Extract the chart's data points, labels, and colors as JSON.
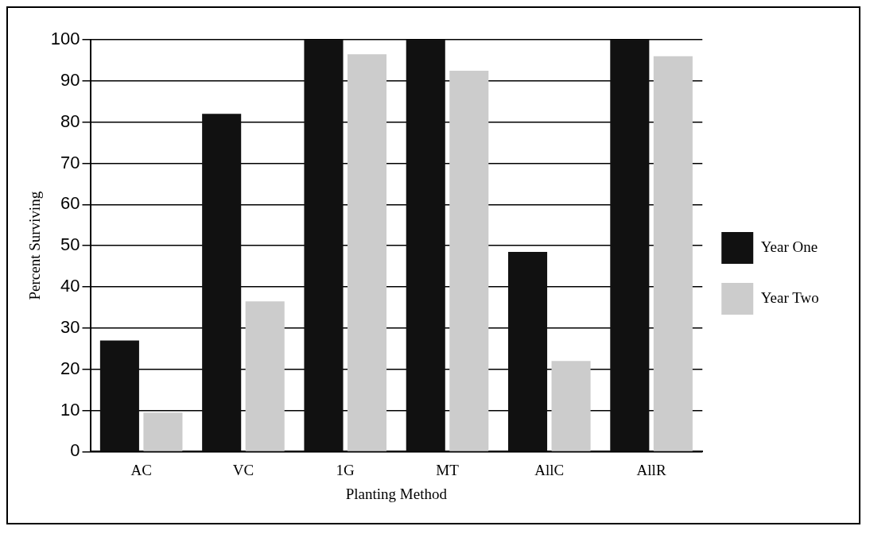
{
  "chart_data": {
    "type": "bar",
    "xlabel": "Planting Method",
    "ylabel": "Percent Surviving",
    "categories": [
      "AC",
      "VC",
      "1G",
      "MT",
      "AllC",
      "AllR"
    ],
    "series": [
      {
        "name": "Year One",
        "color": "#111111",
        "values": [
          27,
          82,
          100,
          100,
          48.5,
          100
        ]
      },
      {
        "name": "Year Two",
        "color": "#cccccc",
        "values": [
          9.5,
          36.5,
          96.5,
          92.5,
          22,
          96
        ]
      }
    ],
    "ylim": [
      0,
      100
    ],
    "yticks": [
      0,
      10,
      20,
      30,
      40,
      50,
      60,
      70,
      80,
      90,
      100
    ],
    "grid": "y",
    "legend": "right"
  }
}
